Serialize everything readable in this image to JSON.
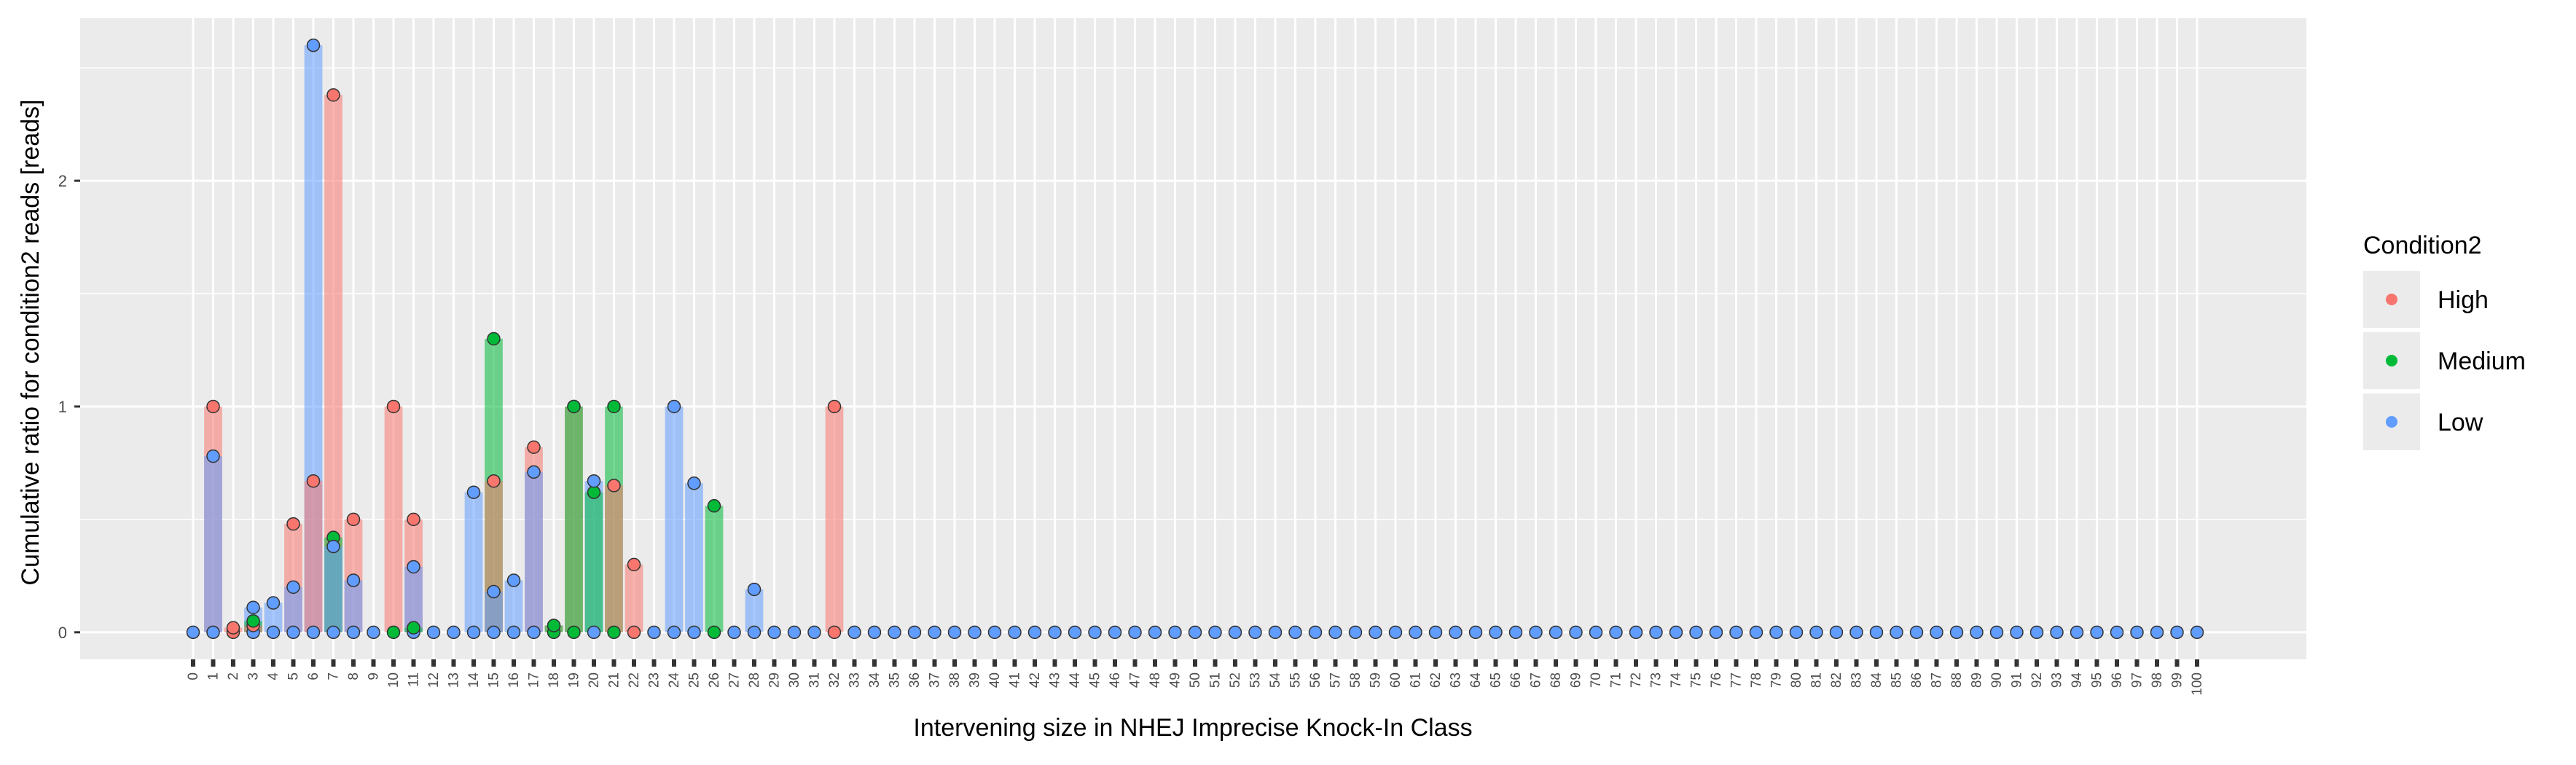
{
  "chart_data": {
    "type": "bar",
    "xlabel": "Intervening size in NHEJ Imprecise Knock-In Class",
    "ylabel": "Cumulative ratio for condition2 reads [reads]",
    "x": [
      0,
      1,
      2,
      3,
      4,
      5,
      6,
      7,
      8,
      9,
      10,
      11,
      12,
      13,
      14,
      15,
      16,
      17,
      18,
      19,
      20,
      21,
      22,
      23,
      24,
      25,
      26,
      27,
      28,
      29,
      30,
      31,
      32,
      33,
      34,
      35,
      36,
      37,
      38,
      39,
      40,
      41,
      42,
      43,
      44,
      45,
      46,
      47,
      48,
      49,
      50,
      51,
      52,
      53,
      54,
      55,
      56,
      57,
      58,
      59,
      60,
      61,
      62,
      63,
      64,
      65,
      66,
      67,
      68,
      69,
      70,
      71,
      72,
      73,
      74,
      75,
      76,
      77,
      78,
      79,
      80,
      81,
      82,
      83,
      84,
      85,
      86,
      87,
      88,
      89,
      90,
      91,
      92,
      93,
      94,
      95,
      96,
      97,
      98,
      99,
      100
    ],
    "y_ticks": [
      0,
      1,
      2
    ],
    "ylim": [
      -0.12,
      2.72
    ],
    "grid": true,
    "legend": {
      "title": "Condition2",
      "position": "right",
      "entries": [
        "High",
        "Medium",
        "Low"
      ]
    },
    "series": [
      {
        "name": "High",
        "color": "#F8766D",
        "values": {
          "1": 1.0,
          "2": 0.02,
          "3": 0.03,
          "4": 0.0,
          "5": 0.48,
          "6": 0.67,
          "7": 2.38,
          "8": 0.5,
          "10": 1.0,
          "11": 0.5,
          "15": 0.67,
          "17": 0.82,
          "18": 0.03,
          "19": 1.0,
          "20": 0.0,
          "21": 0.65,
          "22": 0.3,
          "32": 1.0
        }
      },
      {
        "name": "Medium",
        "color": "#00BA38",
        "values": {
          "1": 0.0,
          "3": 0.05,
          "4": 0.0,
          "5": 0.0,
          "6": 0.0,
          "7": 0.42,
          "8": 0.0,
          "10": 0.0,
          "11": 0.02,
          "14": 0.0,
          "15": 1.3,
          "16": 0.0,
          "17": 0.0,
          "18": 0.03,
          "19": 1.0,
          "20": 0.62,
          "21": 1.0,
          "24": 0.0,
          "25": 0.0,
          "26": 0.56,
          "28": 0.0
        }
      },
      {
        "name": "Low",
        "color": "#619CFF",
        "values": {
          "1": 0.78,
          "3": 0.11,
          "4": 0.13,
          "5": 0.2,
          "6": 2.6,
          "7": 0.38,
          "8": 0.23,
          "11": 0.29,
          "14": 0.62,
          "15": 0.18,
          "16": 0.23,
          "17": 0.71,
          "20": 0.67,
          "24": 1.0,
          "25": 0.66,
          "28": 0.19
        }
      }
    ]
  }
}
